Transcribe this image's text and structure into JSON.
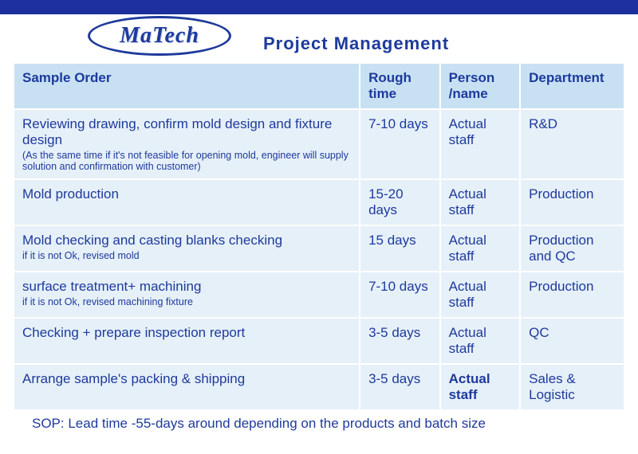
{
  "brand": {
    "logo_text": "MaTech"
  },
  "page_title": "Project  Management",
  "table": {
    "col_widths": [
      "57%",
      "13%",
      "13%",
      "17%"
    ],
    "header_bg": "#c7e1f3",
    "cell_bg": "#e6f0f9",
    "text_color": "#1e3a9c",
    "columns": [
      {
        "label": "Sample Order"
      },
      {
        "label": "Rough time"
      },
      {
        "label": "Person /name"
      },
      {
        "label": "Department"
      }
    ],
    "rows": [
      {
        "task": "Reviewing drawing, confirm mold design and fixture design",
        "task_sub": "(As the same time if it's not feasible for opening mold, engineer will supply solution and confirmation with customer)",
        "time": "7-10 days",
        "person": "Actual staff",
        "dept": "R&D",
        "person_bold": false
      },
      {
        "task": "Mold production",
        "task_sub": "",
        "time": "15-20 days",
        "person": "Actual staff",
        "dept": "Production",
        "person_bold": false
      },
      {
        "task": "Mold checking and casting blanks checking",
        "task_sub": "if it is not Ok, revised mold",
        "time": "15 days",
        "person": "Actual staff",
        "dept": "Production and QC",
        "person_bold": false
      },
      {
        "task": "surface treatment+ machining",
        "task_sub": "if it is not Ok, revised machining fixture",
        "time": "7-10 days",
        "person": "Actual staff",
        "dept": "Production",
        "person_bold": false
      },
      {
        "task": "Checking + prepare inspection report",
        "task_sub": "",
        "time": "3-5 days",
        "person": "Actual staff",
        "dept": "QC",
        "person_bold": false
      },
      {
        "task": "Arrange sample's packing & shipping",
        "task_sub": "",
        "time": "3-5 days",
        "person": "Actual staff",
        "dept": "Sales & Logistic",
        "person_bold": true
      }
    ]
  },
  "footer": "SOP: Lead time -55-days around depending on the products and batch size"
}
